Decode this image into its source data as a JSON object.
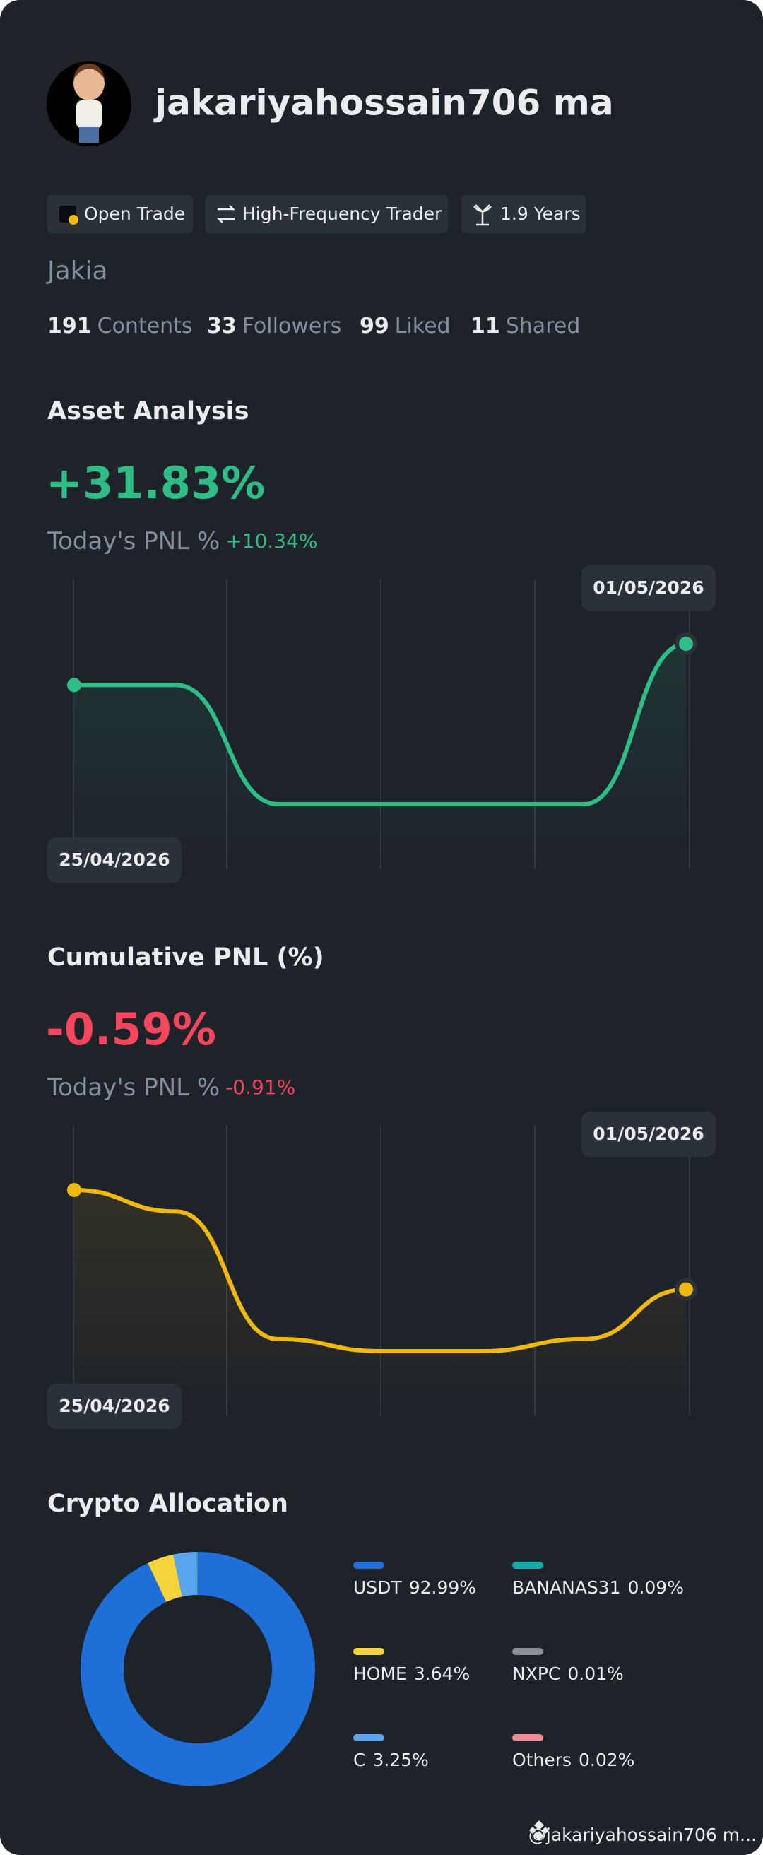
{
  "profile": {
    "name": "jakariyahossain706 ma",
    "tags": [
      "Open Trade",
      "High-Frequency Trader",
      "1.9 Years"
    ],
    "nickname": "Jakia",
    "stats": [
      {
        "count": 191,
        "label": "Contents"
      },
      {
        "count": 33,
        "label": "Followers"
      },
      {
        "count": 99,
        "label": "Liked"
      },
      {
        "count": 11,
        "label": "Shared"
      }
    ]
  },
  "chart_data": [
    {
      "type": "line",
      "title": "Asset Analysis",
      "headline": "+31.83%",
      "headline_color": "#2ebd85",
      "today_label": "Today's PNL %",
      "today_value": "+10.34%",
      "x": [
        "25/04/2026",
        null,
        null,
        null,
        null,
        null,
        "01/05/2026"
      ],
      "values": [
        24.8,
        24.8,
        4.6,
        4.6,
        4.6,
        4.6,
        31.8
      ],
      "color": "#2ebd85"
    },
    {
      "type": "line",
      "title": "Cumulative PNL (%)",
      "headline": "-0.59%",
      "headline_color": "#f6465d",
      "today_label": "Today's PNL %",
      "today_value": "-0.91%",
      "x": [
        "25/04/2026",
        null,
        null,
        null,
        null,
        null,
        "01/05/2026"
      ],
      "values": [
        0.15,
        -0.01,
        -0.96,
        -1.05,
        -1.05,
        -0.96,
        -0.59
      ],
      "color": "#f0b90b"
    },
    {
      "type": "pie",
      "title": "Crypto Allocation",
      "donut": true,
      "categories": [
        "USDT",
        "HOME",
        "C",
        "BANANAS31",
        "NXPC",
        "Others"
      ],
      "values": [
        92.99,
        3.64,
        3.25,
        0.09,
        0.01,
        0.02
      ],
      "value_labels": [
        "92.99%",
        "3.64%",
        "3.25%",
        "0.09%",
        "0.01%",
        "0.02%"
      ],
      "colors": [
        "#1f6fd9",
        "#f5d33a",
        "#5aa5f0",
        "#17a8a8",
        "#8a8f98",
        "#f08a95"
      ]
    }
  ],
  "footer": "@jakariyahossain706 m..."
}
